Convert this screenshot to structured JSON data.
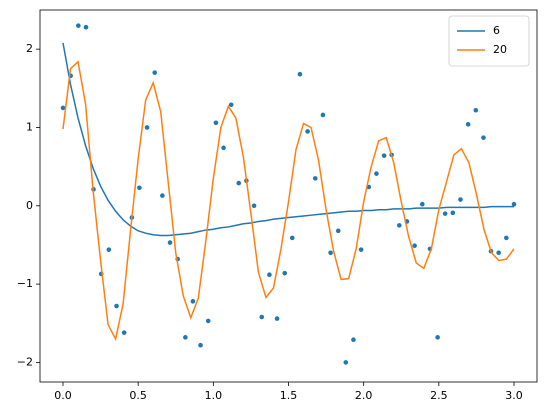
{
  "chart_data": {
    "type": "line",
    "x": [
      0,
      0.05,
      0.1,
      0.15,
      0.2,
      0.25,
      0.3,
      0.35,
      0.4,
      0.45,
      0.5,
      0.55,
      0.6,
      0.65,
      0.7,
      0.75,
      0.8,
      0.85,
      0.9,
      0.95,
      1.0,
      1.05,
      1.1,
      1.15,
      1.2,
      1.25,
      1.3,
      1.35,
      1.4,
      1.45,
      1.5,
      1.55,
      1.6,
      1.65,
      1.7,
      1.75,
      1.8,
      1.85,
      1.9,
      1.95,
      2.0,
      2.05,
      2.1,
      2.15,
      2.2,
      2.25,
      2.3,
      2.35,
      2.4,
      2.45,
      2.5,
      2.55,
      2.6,
      2.65,
      2.7,
      2.75,
      2.8,
      2.85,
      2.9,
      2.95,
      3.0
    ],
    "series": [
      {
        "name": "6",
        "color": "#1f77b4",
        "values": [
          2.08,
          1.55,
          1.12,
          0.77,
          0.48,
          0.25,
          0.07,
          -0.07,
          -0.18,
          -0.26,
          -0.32,
          -0.35,
          -0.37,
          -0.38,
          -0.38,
          -0.37,
          -0.36,
          -0.35,
          -0.33,
          -0.31,
          -0.3,
          -0.28,
          -0.27,
          -0.25,
          -0.23,
          -0.22,
          -0.2,
          -0.19,
          -0.17,
          -0.16,
          -0.15,
          -0.14,
          -0.13,
          -0.12,
          -0.11,
          -0.1,
          -0.09,
          -0.08,
          -0.07,
          -0.07,
          -0.06,
          -0.06,
          -0.05,
          -0.05,
          -0.04,
          -0.04,
          -0.04,
          -0.03,
          -0.03,
          -0.03,
          -0.03,
          -0.02,
          -0.02,
          -0.02,
          -0.02,
          -0.02,
          -0.02,
          -0.01,
          -0.01,
          -0.01,
          -0.01
        ]
      },
      {
        "name": "20",
        "color": "#ff7f0e",
        "values": [
          0.98,
          1.75,
          1.84,
          1.3,
          0.2,
          -0.7,
          -1.52,
          -1.7,
          -1.25,
          -0.3,
          0.6,
          1.35,
          1.57,
          1.2,
          0.3,
          -0.6,
          -1.15,
          -1.43,
          -1.18,
          -0.45,
          0.35,
          1.0,
          1.27,
          1.12,
          0.62,
          -0.1,
          -0.85,
          -1.17,
          -1.05,
          -0.55,
          0.05,
          0.72,
          1.05,
          1.0,
          0.58,
          -0.05,
          -0.58,
          -0.94,
          -0.93,
          -0.55,
          0.05,
          0.5,
          0.83,
          0.87,
          0.55,
          0.05,
          -0.4,
          -0.73,
          -0.8,
          -0.55,
          -0.05,
          0.3,
          0.65,
          0.73,
          0.55,
          0.15,
          -0.3,
          -0.6,
          -0.7,
          -0.68,
          -0.55
        ]
      }
    ],
    "points": {
      "color": "#1f77b4",
      "x": [
        0,
        0.051,
        0.102,
        0.153,
        0.203,
        0.254,
        0.305,
        0.356,
        0.407,
        0.458,
        0.508,
        0.559,
        0.61,
        0.661,
        0.712,
        0.763,
        0.814,
        0.864,
        0.915,
        0.966,
        1.017,
        1.068,
        1.119,
        1.169,
        1.22,
        1.271,
        1.322,
        1.373,
        1.424,
        1.475,
        1.525,
        1.576,
        1.627,
        1.678,
        1.729,
        1.78,
        1.831,
        1.881,
        1.932,
        1.983,
        2.034,
        2.085,
        2.136,
        2.186,
        2.237,
        2.288,
        2.339,
        2.39,
        2.441,
        2.492,
        2.542,
        2.593,
        2.644,
        2.695,
        2.746,
        2.797,
        2.847,
        2.898,
        2.949,
        3.0
      ],
      "values": [
        1.25,
        1.66,
        2.3,
        2.28,
        0.21,
        -0.87,
        -0.56,
        -1.28,
        -1.62,
        -0.15,
        0.23,
        1.0,
        1.7,
        0.13,
        -0.47,
        -0.68,
        -1.68,
        -1.22,
        -1.78,
        -1.47,
        1.06,
        0.74,
        1.29,
        0.29,
        0.32,
        0.0,
        -1.42,
        -0.88,
        -1.44,
        -0.86,
        -0.41,
        1.68,
        0.95,
        0.35,
        1.16,
        -0.6,
        -0.32,
        -2.0,
        -1.71,
        -0.56,
        0.24,
        0.41,
        0.64,
        0.65,
        -0.25,
        -0.2,
        -0.51,
        0.02,
        -0.55,
        -1.68,
        -0.1,
        -0.09,
        0.08,
        1.04,
        1.22,
        0.87,
        -0.58,
        -0.6,
        -0.41,
        0.02
      ]
    },
    "xlim": [
      -0.153,
      3.153
    ],
    "ylim": [
      -2.25,
      2.5
    ],
    "xticks": [
      {
        "value": 0,
        "label": "0.0"
      },
      {
        "value": 0.5,
        "label": "0.5"
      },
      {
        "value": 1.0,
        "label": "1.0"
      },
      {
        "value": 1.5,
        "label": "1.5"
      },
      {
        "value": 2.0,
        "label": "2.0"
      },
      {
        "value": 2.5,
        "label": "2.5"
      },
      {
        "value": 3.0,
        "label": "3.0"
      }
    ],
    "yticks": [
      {
        "value": -2,
        "label": "−2"
      },
      {
        "value": -1,
        "label": "−1"
      },
      0,
      1,
      2
    ],
    "legend": "upper right"
  }
}
